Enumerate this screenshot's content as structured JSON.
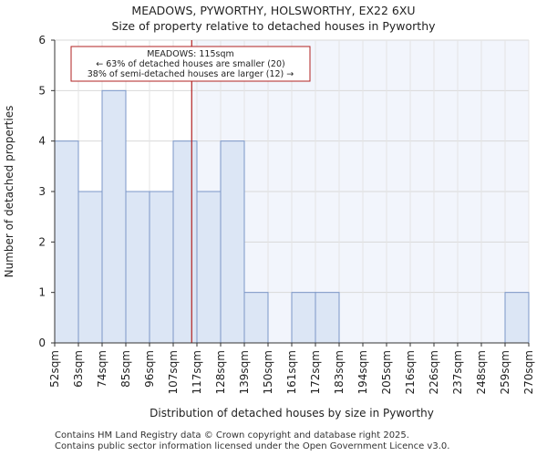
{
  "title": "MEADOWS, PYWORTHY, HOLSWORTHY, EX22 6XU",
  "subtitle": "Size of property relative to detached houses in Pyworthy",
  "chart_data": {
    "type": "bar",
    "xlabel": "Distribution of detached houses by size in Pyworthy",
    "ylabel": "Number of detached properties",
    "tick_labels": [
      "52sqm",
      "63sqm",
      "74sqm",
      "85sqm",
      "96sqm",
      "107sqm",
      "117sqm",
      "128sqm",
      "139sqm",
      "150sqm",
      "161sqm",
      "172sqm",
      "183sqm",
      "194sqm",
      "205sqm",
      "216sqm",
      "226sqm",
      "237sqm",
      "248sqm",
      "259sqm",
      "270sqm"
    ],
    "values": [
      4,
      3,
      5,
      3,
      3,
      4,
      3,
      4,
      1,
      0,
      1,
      1,
      0,
      0,
      0,
      0,
      0,
      0,
      0,
      1
    ],
    "ylim": [
      0,
      6
    ],
    "yticks": [
      0,
      1,
      2,
      3,
      4,
      5,
      6
    ],
    "marker_value": 115,
    "marker_color": "#b22222",
    "bar_fill": "#dce6f5",
    "bar_edge": "#7b97c8",
    "shade_fill": "#f2f5fc",
    "annotation": [
      "MEADOWS: 115sqm",
      "← 63% of detached houses are smaller (20)",
      "38% of semi-detached houses are larger (12) →"
    ]
  },
  "footer": [
    "Contains HM Land Registry data © Crown copyright and database right 2025.",
    "Contains public sector information licensed under the Open Government Licence v3.0."
  ]
}
